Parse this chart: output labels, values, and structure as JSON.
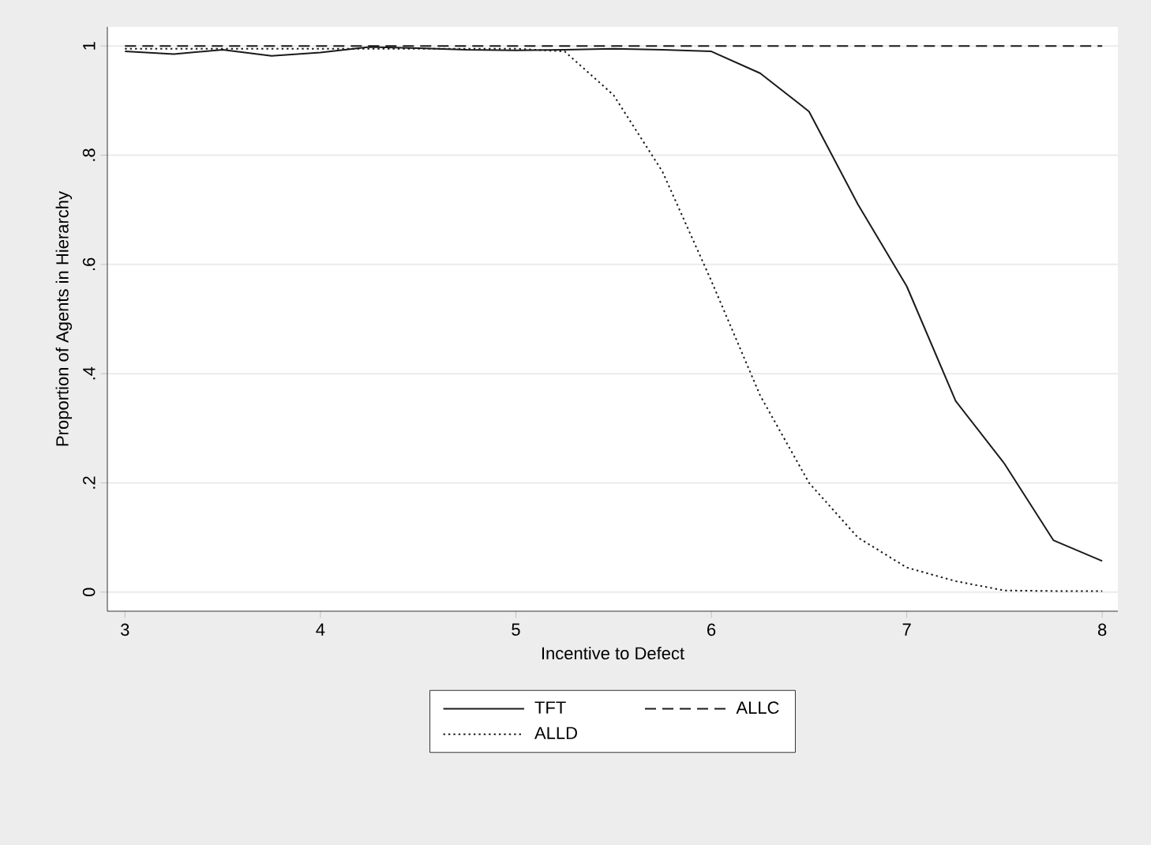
{
  "chart_data": {
    "type": "line",
    "xlabel": "Incentive to Defect",
    "ylabel": "Proportion of Agents in Hierarchy",
    "x": [
      3,
      3.25,
      3.5,
      3.75,
      4,
      4.25,
      4.5,
      4.75,
      5,
      5.25,
      5.5,
      5.75,
      6,
      6.25,
      6.5,
      6.75,
      7,
      7.25,
      7.5,
      7.75,
      8
    ],
    "series": [
      {
        "name": "TFT",
        "color": "#1a1a1a",
        "line_style": "solid",
        "values": [
          0.99,
          0.985,
          0.993,
          0.982,
          0.988,
          0.998,
          0.996,
          0.993,
          0.992,
          0.993,
          0.995,
          0.993,
          0.99,
          0.95,
          0.88,
          0.71,
          0.56,
          0.35,
          0.235,
          0.095,
          0.057
        ]
      },
      {
        "name": "ALLC",
        "color": "#1a1a1a",
        "line_style": "dashed",
        "values": [
          1,
          1,
          1,
          1,
          1,
          1,
          1,
          1,
          1,
          1,
          1,
          1,
          1,
          1,
          1,
          1,
          1,
          1,
          1,
          1,
          1
        ]
      },
      {
        "name": "ALLD",
        "color": "#1a1a1a",
        "line_style": "dotted",
        "values": [
          0.995,
          0.995,
          0.995,
          0.995,
          0.995,
          0.995,
          0.995,
          0.995,
          0.995,
          0.99,
          0.91,
          0.77,
          0.57,
          0.36,
          0.2,
          0.1,
          0.045,
          0.02,
          0.003,
          0.002,
          0.002
        ]
      }
    ],
    "xlim": [
      2.91,
      8.08
    ],
    "ylim": [
      -0.035,
      1.035
    ],
    "xticks": [
      3,
      4,
      5,
      6,
      7,
      8
    ],
    "yticks": [
      {
        "value": 0,
        "label": "0"
      },
      {
        "value": 0.2,
        "label": ".2"
      },
      {
        "value": 0.4,
        "label": ".4"
      },
      {
        "value": 0.6,
        "label": ".6"
      },
      {
        "value": 0.8,
        "label": ".8"
      },
      {
        "value": 1,
        "label": "1"
      }
    ],
    "grid": "y",
    "legend": "bottom",
    "marker": "none"
  }
}
